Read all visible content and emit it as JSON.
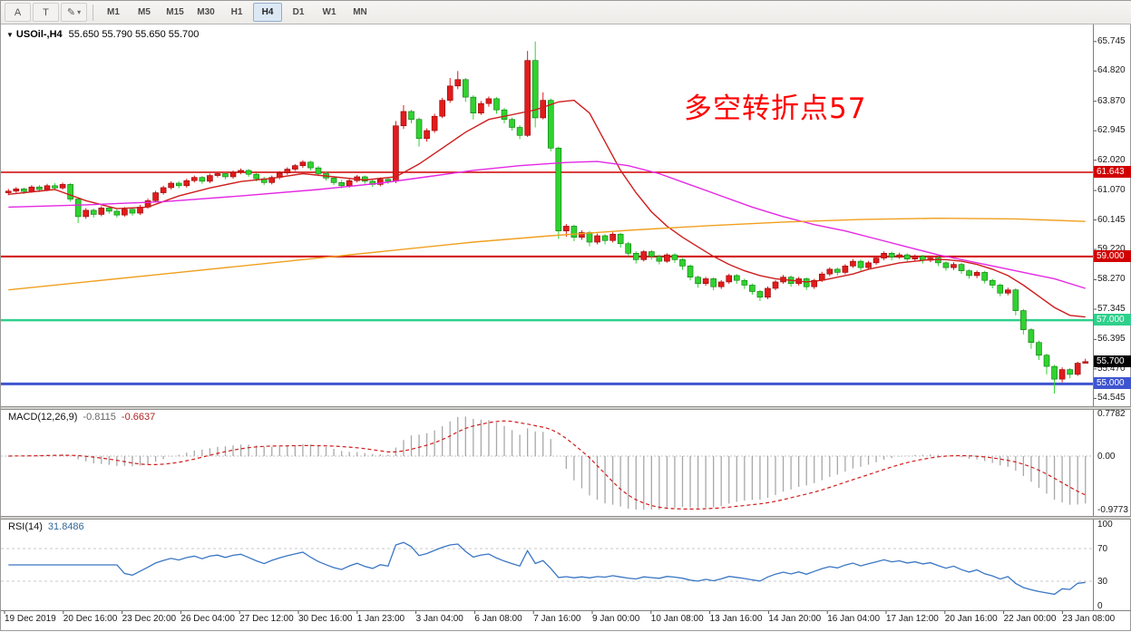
{
  "toolbar": {
    "tool_buttons": [
      {
        "name": "pointer-tool-button",
        "label": "A"
      },
      {
        "name": "text-tool-button",
        "label": "T"
      },
      {
        "name": "draw-tool-button",
        "label": "✎",
        "caret": "▾"
      }
    ],
    "timeframes": [
      "M1",
      "M5",
      "M15",
      "M30",
      "H1",
      "H4",
      "D1",
      "W1",
      "MN"
    ],
    "active_timeframe": "H4"
  },
  "chart_data": {
    "type": "candlestick",
    "symbol": "USOil-",
    "period": "H4",
    "title": {
      "symbol_period": "USOil-,H4",
      "ohlc": "55.650 55.790 55.650 55.700"
    },
    "annotation": {
      "text": "多空转折点57",
      "color": "#ff0000"
    },
    "price_axis_labels": [
      "65.745",
      "64.820",
      "63.870",
      "62.945",
      "62.020",
      "61.070",
      "60.145",
      "59.220",
      "58.270",
      "57.345",
      "56.395",
      "55.470",
      "54.545"
    ],
    "price_range": {
      "max": 66.28,
      "min": 54.3
    },
    "hlines": [
      {
        "label": "61.643",
        "price": 61.643,
        "color": "#d10000",
        "width": 1.5
      },
      {
        "label": "59.000",
        "price": 59.0,
        "color": "#d10000",
        "width": 2
      },
      {
        "label": "57.000",
        "price": 57.0,
        "color": "#2fd08c",
        "width": 2.5
      },
      {
        "label": "55.000",
        "price": 55.0,
        "color": "#3f55cf",
        "width": 3
      }
    ],
    "current_price": {
      "label": "55.700",
      "price": 55.7,
      "bg": "#000000"
    },
    "colors": {
      "up": "#e31b1b",
      "up_border": "#8e0000",
      "down": "#2fd32f",
      "down_border": "#107410"
    },
    "candles": [
      [
        61.0,
        61.12,
        60.92,
        61.05
      ],
      [
        61.05,
        61.18,
        60.99,
        61.12
      ],
      [
        61.12,
        61.16,
        60.96,
        61.04
      ],
      [
        61.04,
        61.24,
        61.0,
        61.18
      ],
      [
        61.18,
        61.24,
        61.02,
        61.1
      ],
      [
        61.1,
        61.28,
        61.05,
        61.22
      ],
      [
        61.22,
        61.3,
        61.08,
        61.15
      ],
      [
        61.15,
        61.32,
        61.1,
        61.26
      ],
      [
        61.26,
        61.3,
        60.72,
        60.8
      ],
      [
        60.8,
        60.85,
        60.05,
        60.25
      ],
      [
        60.25,
        60.52,
        60.18,
        60.45
      ],
      [
        60.45,
        60.5,
        60.22,
        60.32
      ],
      [
        60.32,
        60.58,
        60.26,
        60.52
      ],
      [
        60.52,
        60.58,
        60.34,
        60.42
      ],
      [
        60.42,
        60.48,
        60.22,
        60.3
      ],
      [
        60.3,
        60.55,
        60.25,
        60.48
      ],
      [
        60.48,
        60.54,
        60.28,
        60.36
      ],
      [
        60.36,
        60.62,
        60.3,
        60.55
      ],
      [
        60.55,
        60.82,
        60.5,
        60.75
      ],
      [
        60.75,
        61.06,
        60.7,
        61.0
      ],
      [
        61.0,
        61.22,
        60.94,
        61.16
      ],
      [
        61.16,
        61.36,
        61.1,
        61.3
      ],
      [
        61.3,
        61.36,
        61.14,
        61.22
      ],
      [
        61.22,
        61.44,
        61.16,
        61.38
      ],
      [
        61.38,
        61.54,
        61.32,
        61.48
      ],
      [
        61.48,
        61.52,
        61.28,
        61.36
      ],
      [
        61.36,
        61.6,
        61.3,
        61.54
      ],
      [
        61.54,
        61.66,
        61.48,
        61.6
      ],
      [
        61.6,
        61.64,
        61.42,
        61.5
      ],
      [
        61.5,
        61.7,
        61.44,
        61.64
      ],
      [
        61.64,
        61.76,
        61.58,
        61.7
      ],
      [
        61.7,
        61.74,
        61.5,
        61.58
      ],
      [
        61.58,
        61.62,
        61.36,
        61.44
      ],
      [
        61.44,
        61.5,
        61.24,
        61.32
      ],
      [
        61.32,
        61.54,
        61.26,
        61.48
      ],
      [
        61.48,
        61.68,
        61.42,
        61.62
      ],
      [
        61.62,
        61.8,
        61.56,
        61.74
      ],
      [
        61.74,
        61.9,
        61.68,
        61.85
      ],
      [
        61.85,
        62.02,
        61.78,
        61.96
      ],
      [
        61.96,
        62.0,
        61.7,
        61.78
      ],
      [
        61.78,
        61.84,
        61.52,
        61.6
      ],
      [
        61.6,
        61.66,
        61.38,
        61.46
      ],
      [
        61.46,
        61.52,
        61.24,
        61.32
      ],
      [
        61.32,
        61.4,
        61.14,
        61.22
      ],
      [
        61.22,
        61.44,
        61.16,
        61.38
      ],
      [
        61.38,
        61.56,
        61.32,
        61.5
      ],
      [
        61.5,
        61.54,
        61.28,
        61.36
      ],
      [
        61.36,
        61.42,
        61.18,
        61.26
      ],
      [
        61.26,
        61.48,
        61.2,
        61.42
      ],
      [
        61.42,
        61.46,
        61.28,
        61.36
      ],
      [
        61.36,
        63.25,
        61.3,
        63.1
      ],
      [
        63.1,
        63.75,
        63.0,
        63.55
      ],
      [
        63.55,
        63.6,
        63.18,
        63.3
      ],
      [
        63.3,
        63.36,
        62.45,
        62.7
      ],
      [
        62.7,
        63.02,
        62.6,
        62.95
      ],
      [
        62.95,
        63.48,
        62.88,
        63.4
      ],
      [
        63.4,
        63.98,
        63.34,
        63.9
      ],
      [
        63.9,
        64.6,
        63.82,
        64.35
      ],
      [
        64.35,
        64.82,
        64.25,
        64.55
      ],
      [
        64.55,
        64.6,
        63.85,
        64.0
      ],
      [
        64.0,
        64.06,
        63.3,
        63.5
      ],
      [
        63.5,
        63.88,
        63.44,
        63.8
      ],
      [
        63.8,
        64.02,
        63.7,
        63.95
      ],
      [
        63.95,
        64.0,
        63.48,
        63.6
      ],
      [
        63.6,
        63.66,
        63.18,
        63.3
      ],
      [
        63.3,
        63.36,
        62.95,
        63.05
      ],
      [
        63.05,
        63.12,
        62.68,
        62.8
      ],
      [
        62.8,
        65.45,
        62.75,
        65.15
      ],
      [
        65.15,
        65.745,
        63.05,
        63.35
      ],
      [
        63.35,
        64.15,
        63.3,
        63.9
      ],
      [
        63.9,
        63.96,
        62.3,
        62.4
      ],
      [
        62.4,
        62.45,
        59.55,
        59.8
      ],
      [
        59.8,
        60.02,
        59.62,
        59.95
      ],
      [
        59.95,
        60.0,
        59.48,
        59.6
      ],
      [
        59.6,
        59.82,
        59.52,
        59.75
      ],
      [
        59.75,
        59.8,
        59.32,
        59.45
      ],
      [
        59.45,
        59.72,
        59.38,
        59.65
      ],
      [
        59.65,
        59.7,
        59.38,
        59.5
      ],
      [
        59.5,
        59.76,
        59.44,
        59.7
      ],
      [
        59.7,
        59.74,
        59.28,
        59.4
      ],
      [
        59.4,
        59.46,
        59.0,
        59.1
      ],
      [
        59.1,
        59.16,
        58.78,
        58.9
      ],
      [
        58.9,
        59.2,
        58.84,
        59.15
      ],
      [
        59.15,
        59.2,
        58.9,
        59.0
      ],
      [
        59.0,
        59.06,
        58.75,
        58.85
      ],
      [
        58.85,
        59.1,
        58.8,
        59.05
      ],
      [
        59.05,
        59.1,
        58.8,
        58.9
      ],
      [
        58.9,
        58.95,
        58.58,
        58.7
      ],
      [
        58.7,
        58.75,
        58.25,
        58.35
      ],
      [
        58.35,
        58.4,
        58.02,
        58.15
      ],
      [
        58.15,
        58.36,
        58.08,
        58.3
      ],
      [
        58.3,
        58.34,
        57.94,
        58.05
      ],
      [
        58.05,
        58.26,
        57.98,
        58.2
      ],
      [
        58.2,
        58.46,
        58.14,
        58.4
      ],
      [
        58.4,
        58.45,
        58.14,
        58.25
      ],
      [
        58.25,
        58.3,
        57.98,
        58.1
      ],
      [
        58.1,
        58.15,
        57.8,
        57.9
      ],
      [
        57.9,
        57.95,
        57.6,
        57.72
      ],
      [
        57.72,
        58.06,
        57.66,
        58.0
      ],
      [
        58.0,
        58.26,
        57.94,
        58.2
      ],
      [
        58.2,
        58.42,
        58.14,
        58.35
      ],
      [
        58.35,
        58.4,
        58.05,
        58.15
      ],
      [
        58.15,
        58.36,
        58.08,
        58.3
      ],
      [
        58.3,
        58.34,
        57.95,
        58.05
      ],
      [
        58.05,
        58.3,
        57.98,
        58.25
      ],
      [
        58.25,
        58.52,
        58.2,
        58.45
      ],
      [
        58.45,
        58.66,
        58.38,
        58.6
      ],
      [
        58.6,
        58.65,
        58.4,
        58.5
      ],
      [
        58.5,
        58.76,
        58.44,
        58.7
      ],
      [
        58.7,
        58.92,
        58.64,
        58.85
      ],
      [
        58.85,
        58.9,
        58.55,
        58.65
      ],
      [
        58.65,
        58.86,
        58.58,
        58.8
      ],
      [
        58.8,
        59.02,
        58.74,
        58.95
      ],
      [
        58.95,
        59.16,
        58.88,
        59.1
      ],
      [
        59.1,
        59.15,
        58.88,
        58.98
      ],
      [
        58.98,
        59.12,
        58.92,
        59.05
      ],
      [
        59.05,
        59.1,
        58.82,
        58.92
      ],
      [
        58.92,
        59.06,
        58.86,
        59.0
      ],
      [
        59.0,
        59.05,
        58.78,
        58.88
      ],
      [
        58.88,
        59.02,
        58.82,
        58.95
      ],
      [
        58.95,
        59.0,
        58.7,
        58.8
      ],
      [
        58.8,
        58.85,
        58.55,
        58.65
      ],
      [
        58.65,
        58.82,
        58.58,
        58.75
      ],
      [
        58.75,
        58.8,
        58.45,
        58.55
      ],
      [
        58.55,
        58.6,
        58.3,
        58.4
      ],
      [
        58.4,
        58.56,
        58.32,
        58.5
      ],
      [
        58.5,
        58.55,
        58.15,
        58.25
      ],
      [
        58.25,
        58.3,
        58.0,
        58.1
      ],
      [
        58.1,
        58.15,
        57.75,
        57.85
      ],
      [
        57.85,
        58.02,
        57.78,
        57.95
      ],
      [
        57.95,
        58.0,
        57.15,
        57.3
      ],
      [
        57.3,
        57.35,
        56.55,
        56.7
      ],
      [
        56.7,
        56.75,
        56.1,
        56.3
      ],
      [
        56.3,
        56.36,
        55.75,
        55.9
      ],
      [
        55.9,
        55.95,
        55.3,
        55.55
      ],
      [
        55.55,
        55.6,
        54.7,
        55.15
      ],
      [
        55.15,
        55.52,
        55.05,
        55.45
      ],
      [
        55.45,
        55.5,
        55.18,
        55.3
      ],
      [
        55.3,
        55.7,
        55.25,
        55.65
      ],
      [
        55.65,
        55.79,
        55.65,
        55.7
      ]
    ],
    "ma_lines": [
      {
        "name": "ma-line-fast-red",
        "color": "#cf1d1d",
        "points": [
          [
            0,
            60.95
          ],
          [
            6,
            61.1
          ],
          [
            10,
            60.75
          ],
          [
            14,
            60.5
          ],
          [
            18,
            60.55
          ],
          [
            22,
            60.9
          ],
          [
            26,
            61.15
          ],
          [
            30,
            61.35
          ],
          [
            34,
            61.45
          ],
          [
            38,
            61.6
          ],
          [
            42,
            61.5
          ],
          [
            46,
            61.4
          ],
          [
            50,
            61.5
          ],
          [
            53,
            61.9
          ],
          [
            56,
            62.4
          ],
          [
            59,
            62.9
          ],
          [
            62,
            63.3
          ],
          [
            65,
            63.45
          ],
          [
            68,
            63.6
          ],
          [
            71,
            63.85
          ],
          [
            73,
            63.9
          ],
          [
            75,
            63.5
          ],
          [
            77,
            62.6
          ],
          [
            79,
            61.7
          ],
          [
            81,
            61.0
          ],
          [
            83,
            60.4
          ],
          [
            85,
            59.95
          ],
          [
            87,
            59.6
          ],
          [
            89,
            59.3
          ],
          [
            91,
            59.0
          ],
          [
            93,
            58.75
          ],
          [
            95,
            58.55
          ],
          [
            97,
            58.4
          ],
          [
            99,
            58.3
          ],
          [
            101,
            58.25
          ],
          [
            103,
            58.2
          ],
          [
            105,
            58.25
          ],
          [
            107,
            58.35
          ],
          [
            109,
            58.45
          ],
          [
            111,
            58.6
          ],
          [
            113,
            58.7
          ],
          [
            115,
            58.8
          ],
          [
            117,
            58.85
          ],
          [
            119,
            58.9
          ],
          [
            121,
            58.9
          ],
          [
            123,
            58.85
          ],
          [
            125,
            58.75
          ],
          [
            127,
            58.6
          ],
          [
            129,
            58.4
          ],
          [
            131,
            58.1
          ],
          [
            133,
            57.75
          ],
          [
            135,
            57.4
          ],
          [
            137,
            57.15
          ],
          [
            139,
            57.1
          ]
        ]
      },
      {
        "name": "ma-line-mid-magenta",
        "color": "#e428e4",
        "points": [
          [
            0,
            60.55
          ],
          [
            10,
            60.62
          ],
          [
            20,
            60.72
          ],
          [
            30,
            60.9
          ],
          [
            40,
            61.1
          ],
          [
            48,
            61.3
          ],
          [
            54,
            61.5
          ],
          [
            60,
            61.7
          ],
          [
            66,
            61.85
          ],
          [
            72,
            61.95
          ],
          [
            76,
            61.98
          ],
          [
            80,
            61.85
          ],
          [
            84,
            61.6
          ],
          [
            88,
            61.25
          ],
          [
            92,
            60.9
          ],
          [
            96,
            60.55
          ],
          [
            100,
            60.25
          ],
          [
            104,
            60.0
          ],
          [
            108,
            59.8
          ],
          [
            112,
            59.55
          ],
          [
            116,
            59.3
          ],
          [
            120,
            59.05
          ],
          [
            124,
            58.85
          ],
          [
            128,
            58.65
          ],
          [
            132,
            58.45
          ],
          [
            135,
            58.3
          ],
          [
            139,
            58.0
          ]
        ]
      },
      {
        "name": "ma-line-slow-orange",
        "color": "#f0a020",
        "points": [
          [
            0,
            57.95
          ],
          [
            10,
            58.2
          ],
          [
            20,
            58.45
          ],
          [
            30,
            58.7
          ],
          [
            40,
            58.95
          ],
          [
            50,
            59.2
          ],
          [
            60,
            59.45
          ],
          [
            70,
            59.65
          ],
          [
            80,
            59.82
          ],
          [
            90,
            59.96
          ],
          [
            100,
            60.08
          ],
          [
            110,
            60.16
          ],
          [
            120,
            60.2
          ],
          [
            130,
            60.18
          ],
          [
            139,
            60.1
          ]
        ]
      }
    ],
    "macd": {
      "label": "MACD(12,26,9)",
      "value1": "-0.8115",
      "value2": "-0.6637",
      "fast": 12,
      "slow": 26,
      "signal": 9,
      "axis_labels": [
        "0.7782",
        "0.00",
        "-0.9773"
      ],
      "range_max": 0.7782,
      "range_min": -0.9773,
      "hist_color": "#a8a8a8",
      "signal_color": "#cf1d1d"
    },
    "rsi": {
      "label": "RSI(14)",
      "value": "31.8486",
      "period": 14,
      "axis_labels": [
        "100",
        "70",
        "30",
        "0"
      ],
      "levels": [
        70,
        30
      ],
      "line_color": "#3a76c4"
    },
    "time_labels": [
      "19 Dec 2019",
      "20 Dec 16:00",
      "23 Dec 20:00",
      "26 Dec 04:00",
      "27 Dec 12:00",
      "30 Dec 16:00",
      "1 Jan 23:00",
      "3 Jan 04:00",
      "6 Jan 08:00",
      "7 Jan 16:00",
      "9 Jan 00:00",
      "10 Jan 08:00",
      "13 Jan 16:00",
      "14 Jan 20:00",
      "16 Jan 04:00",
      "17 Jan 12:00",
      "20 Jan 16:00",
      "22 Jan 00:00",
      "23 Jan 08:00"
    ]
  }
}
